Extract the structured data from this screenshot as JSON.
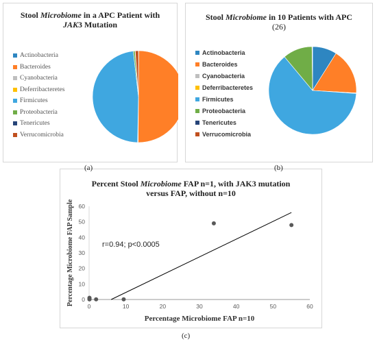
{
  "chart_data": [
    {
      "type": "pie",
      "panel_label": "(a)",
      "title_prefix": "Stool ",
      "title_italic": "Microbiome",
      "title_mid": " in a APC Patient with",
      "title_line2_italic": "JAK",
      "title_line2_rest": "3 Mutation",
      "categories": [
        "Actinobacteria",
        "Bacteroides",
        "Cyanobacteria",
        "Deferribacteretes",
        "Firmicutes",
        "Proteobacteria",
        "Tenericutes",
        "Verrucomicrobia"
      ],
      "values": [
        0.1,
        50.0,
        0.1,
        0.1,
        47.9,
        0.6,
        0.1,
        1.1
      ],
      "colors": [
        "#2e86c1",
        "#ff7f27",
        "#bfbfbf",
        "#ffc000",
        "#3fa7e0",
        "#70ad47",
        "#264478",
        "#c0501f"
      ],
      "legend_position": "left"
    },
    {
      "type": "pie",
      "panel_label": "(b)",
      "title_prefix": "Stool ",
      "title_italic": "Microbiome",
      "title_mid": " in 10 Patients with APC",
      "title_line2": "(26)",
      "categories": [
        "Actinobacteria",
        "Bacteroides",
        "Cyanobacteria",
        "Deferribacteretes",
        "Firmicutes",
        "Proteobacteria",
        "Tenericutes",
        "Verrucomicrobia"
      ],
      "values": [
        9.0,
        17.0,
        0.1,
        0.1,
        63.0,
        10.9,
        0.1,
        0.1
      ],
      "colors": [
        "#2e86c1",
        "#ff7f27",
        "#bfbfbf",
        "#ffc000",
        "#3fa7e0",
        "#70ad47",
        "#264478",
        "#c0501f"
      ],
      "legend_position": "left"
    },
    {
      "type": "scatter",
      "panel_label": "(c)",
      "title_prefix": "Percent Stool ",
      "title_italic": "Microbiome",
      "title_mid": " FAP n=1, with JAK3 mutation",
      "title_line2": "versus FAP, without n=10",
      "xlabel": "Percentage Microbiome FAP n=10",
      "ylabel": "Percentage Microbiome FAP Sample",
      "xlim": [
        0,
        60
      ],
      "ylim": [
        0,
        60
      ],
      "xticks": [
        0,
        10,
        20,
        30,
        40,
        50,
        60
      ],
      "yticks": [
        0,
        10,
        20,
        30,
        40,
        50,
        60
      ],
      "points": [
        [
          0.1,
          1.1
        ],
        [
          0.1,
          0.6
        ],
        [
          0.1,
          0.1
        ],
        [
          0.1,
          0.1
        ],
        [
          1.9,
          0.1
        ],
        [
          9.4,
          0.1
        ],
        [
          33.9,
          49.0
        ],
        [
          55.0,
          47.9
        ]
      ],
      "trendline": [
        [
          6.0,
          0
        ],
        [
          55.0,
          56.0
        ]
      ],
      "annotation": "r=0.94; p<0.0005",
      "point_color": "#595959"
    }
  ]
}
